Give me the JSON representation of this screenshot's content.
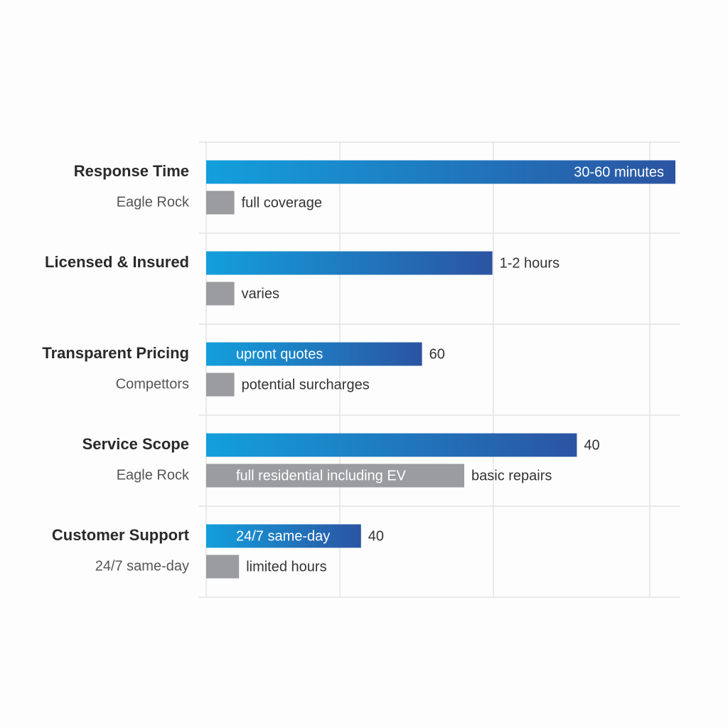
{
  "chart_data": {
    "type": "hbar",
    "categories": [
      "Response Time",
      "Licensed & Insured",
      "Transparent Pricing",
      "Service Scope",
      "Customer Support"
    ],
    "sublabels": [
      "Eagle Rock",
      null,
      "Compettors",
      "Eagle Rock",
      "24/7 same-day"
    ],
    "xlim": [
      0,
      100
    ],
    "series": [
      {
        "color": "#139fdc",
        "color_end": "#2b54a2",
        "values": [
          100,
          61,
          46,
          79,
          33
        ],
        "inner_labels": [
          "30-60 minutes",
          null,
          "upront quotes",
          null,
          "24/7 same-day"
        ],
        "outer_labels": [
          null,
          "1-2 hours",
          "60",
          "40",
          "40"
        ]
      },
      {
        "color": "#9a9c9f",
        "values": [
          6,
          6,
          6,
          55,
          7
        ],
        "inner_labels": [
          null,
          null,
          null,
          "full residential including EV",
          null
        ],
        "outer_labels": [
          "full coverage",
          "varies",
          "potential surcharges",
          "basic repairs",
          "limited hours"
        ]
      }
    ]
  }
}
